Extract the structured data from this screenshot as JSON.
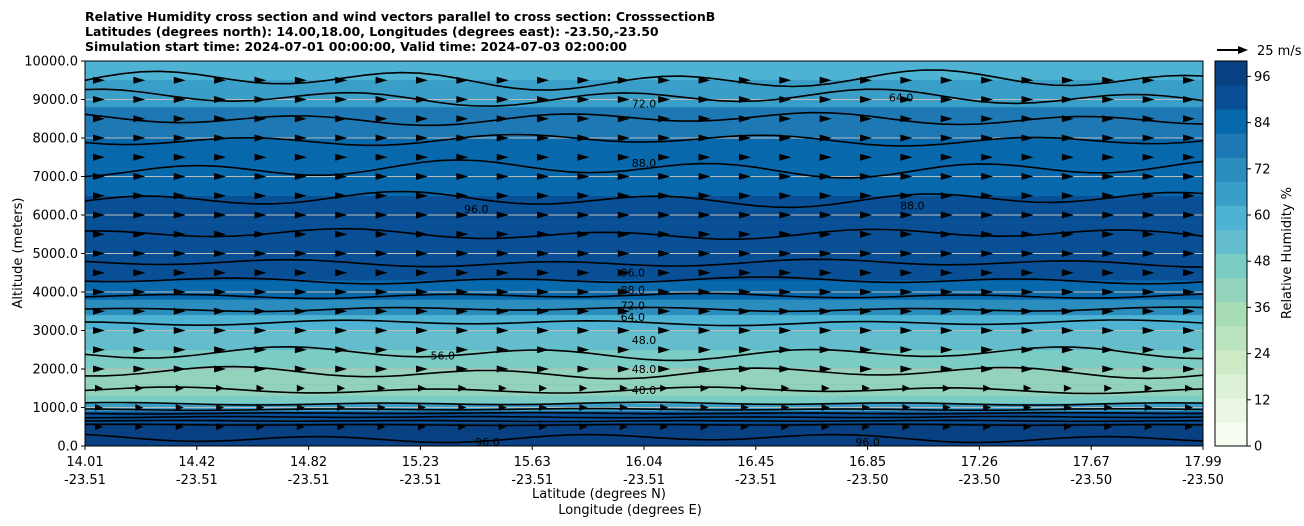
{
  "chart_data": {
    "type": "contour",
    "title": [
      "Relative Humidity cross section and wind vectors parallel to cross section: CrosssectionB",
      "Latitudes (degrees north): 14.00,18.00, Longitudes (degrees east): -23.50,-23.50",
      "Simulation start time: 2024-07-01 00:00:00, Valid time: 2024-07-03 02:00:00"
    ],
    "ylabel": "Altitude (meters)",
    "xlabel_lines": [
      "Latitude (degrees N)",
      "Longitude (degrees E)"
    ],
    "ylim": [
      0,
      10000
    ],
    "yticks": [
      "0.0",
      "1000.0",
      "2000.0",
      "3000.0",
      "4000.0",
      "5000.0",
      "6000.0",
      "7000.0",
      "8000.0",
      "9000.0",
      "10000.0"
    ],
    "xticks": [
      {
        "lat": "14.01",
        "lon": "-23.51"
      },
      {
        "lat": "14.42",
        "lon": "-23.51"
      },
      {
        "lat": "14.82",
        "lon": "-23.51"
      },
      {
        "lat": "15.23",
        "lon": "-23.51"
      },
      {
        "lat": "15.63",
        "lon": "-23.51"
      },
      {
        "lat": "16.04",
        "lon": "-23.51"
      },
      {
        "lat": "16.45",
        "lon": "-23.51"
      },
      {
        "lat": "16.85",
        "lon": "-23.50"
      },
      {
        "lat": "17.26",
        "lon": "-23.50"
      },
      {
        "lat": "17.67",
        "lon": "-23.50"
      },
      {
        "lat": "17.99",
        "lon": "-23.50"
      }
    ],
    "grid": "horizontal",
    "colorbar": {
      "label": "Relative Humidity %",
      "range": [
        0,
        100
      ],
      "ticks": [
        "0",
        "12",
        "24",
        "36",
        "48",
        "60",
        "72",
        "84",
        "96"
      ],
      "colors": [
        "#f7fcf0",
        "#eaf7e5",
        "#dcf1d6",
        "#ccebc5",
        "#bbe4be",
        "#a8ddb5",
        "#93d3bc",
        "#7bccc4",
        "#63bdcc",
        "#4eb3d3",
        "#3a9fc8",
        "#2b8cbe",
        "#1d78b4",
        "#0868ac",
        "#084f96",
        "#084081"
      ]
    },
    "rh_profile": {
      "altitudes": [
        0,
        300,
        600,
        900,
        1100,
        1300,
        1600,
        2000,
        2500,
        3000,
        3400,
        3800,
        4300,
        5000,
        5800,
        6500,
        7200,
        8000,
        8800,
        9500,
        10000
      ],
      "values": [
        98,
        97,
        95,
        80,
        50,
        40,
        40,
        45,
        50,
        56,
        65,
        78,
        90,
        94,
        92,
        88,
        85,
        82,
        70,
        62,
        58
      ]
    },
    "contour_labels": [
      "40.0",
      "48.0",
      "56.0",
      "64.0",
      "72.0",
      "88.0",
      "96.0"
    ],
    "wind_reference": {
      "label": "25 m/s",
      "direction": "east"
    }
  }
}
